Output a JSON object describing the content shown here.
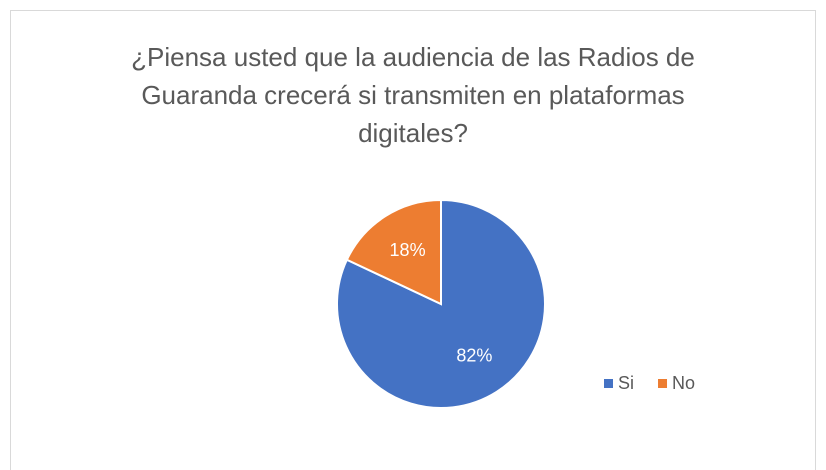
{
  "chart_data": {
    "type": "pie",
    "title": "¿Piensa usted que la audiencia de las Radios de Guaranda crecerá si transmiten en plataformas digitales?",
    "categories": [
      "Si",
      "No"
    ],
    "values": [
      82,
      18
    ],
    "value_labels": [
      "82%",
      "18%"
    ],
    "colors": [
      "#4472c4",
      "#ed7d31"
    ],
    "legend": "right"
  }
}
